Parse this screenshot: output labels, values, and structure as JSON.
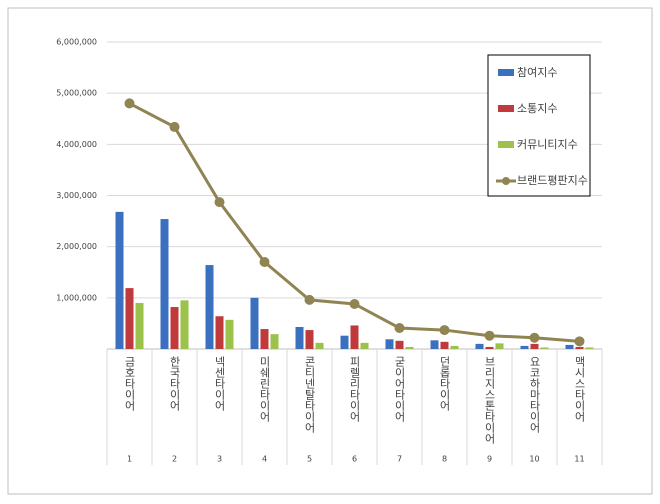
{
  "chart_data": {
    "type": "bar_line",
    "categories": [
      "금호타이어",
      "한국타이어",
      "넥센타이어",
      "미쉐린타이어",
      "콘티넨탈타이어",
      "피렐리타이어",
      "굳이어타이어",
      "던롭타이어",
      "브리지스톤타이어",
      "요코하마타이어",
      "맥시스타이어"
    ],
    "ranks": [
      1,
      2,
      3,
      4,
      5,
      6,
      7,
      8,
      9,
      10,
      11
    ],
    "series": [
      {
        "name": "참여지수",
        "type": "bar",
        "color": "#3b6fc0",
        "values": [
          2680000,
          2540000,
          1640000,
          1000000,
          430000,
          260000,
          190000,
          170000,
          100000,
          60000,
          80000
        ]
      },
      {
        "name": "소통지수",
        "type": "bar",
        "color": "#c0393b",
        "values": [
          1190000,
          820000,
          640000,
          390000,
          370000,
          460000,
          160000,
          140000,
          40000,
          100000,
          40000
        ]
      },
      {
        "name": "커뮤니티지수",
        "type": "bar",
        "color": "#9bc24a",
        "values": [
          900000,
          950000,
          570000,
          290000,
          120000,
          120000,
          40000,
          60000,
          110000,
          30000,
          30000
        ]
      },
      {
        "name": "브랜드평판지수",
        "type": "line",
        "color": "#8f8452",
        "values": [
          4800000,
          4340000,
          2870000,
          1700000,
          960000,
          880000,
          410000,
          370000,
          260000,
          220000,
          150000
        ]
      }
    ],
    "ylim": [
      0,
      6000000
    ],
    "yticks": [
      {
        "value": 1000000,
        "label": "1,000,000"
      },
      {
        "value": 2000000,
        "label": "2,000,000"
      },
      {
        "value": 3000000,
        "label": "3,000,000"
      },
      {
        "value": 4000000,
        "label": "4,000,000"
      },
      {
        "value": 5000000,
        "label": "5,000,000"
      },
      {
        "value": 6000000,
        "label": "6,000,000"
      }
    ],
    "grid": true,
    "legend": "top-right"
  }
}
